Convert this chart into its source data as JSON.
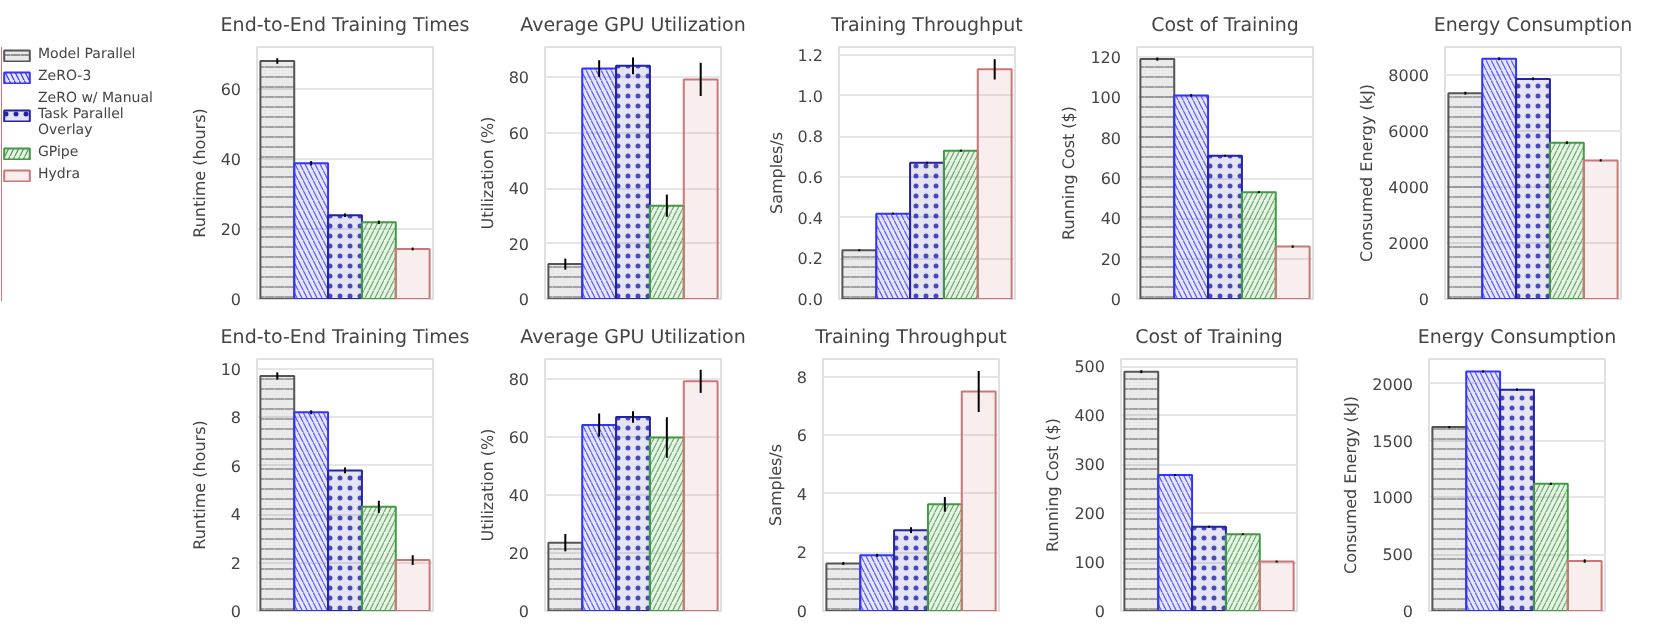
{
  "chart_data": [
    {
      "type": "bar",
      "title": "End-to-End Training Times",
      "ylabel": "Runtime (hours)",
      "categories": [
        null
      ],
      "legend": "left",
      "grid": "y",
      "ylim": [
        0,
        72
      ],
      "yticks": [
        0,
        20,
        40,
        60
      ],
      "series": [
        {
          "name": "Model Parallel",
          "color": "#555555",
          "values": [
            68
          ],
          "errors": [
            0.8
          ]
        },
        {
          "name": "ZeRO-3",
          "color": "#3333ff",
          "values": [
            38.8
          ],
          "errors": [
            0.6
          ]
        },
        {
          "name": "ZeRO w/ Manual Task Parallel Overlay",
          "color": "#2222aa",
          "values": [
            23.9
          ],
          "errors": [
            0.5
          ]
        },
        {
          "name": "GPipe",
          "color": "#449944",
          "values": [
            21.9
          ],
          "errors": [
            0.5
          ]
        },
        {
          "name": "Hydra",
          "color": "#cc7777",
          "values": [
            14.3
          ],
          "errors": [
            0.4
          ]
        }
      ]
    },
    {
      "type": "bar",
      "title": "Average GPU Utilization",
      "ylabel": "Utilization (%)",
      "categories": [
        null
      ],
      "grid": "y",
      "ylim": [
        0,
        91
      ],
      "yticks": [
        0,
        20,
        40,
        60,
        80
      ],
      "series": [
        {
          "color": "#555555",
          "values": [
            12.6
          ],
          "errors": [
            2
          ]
        },
        {
          "color": "#3333ff",
          "values": [
            83.2
          ],
          "errors": [
            3
          ]
        },
        {
          "color": "#2222aa",
          "values": [
            84.2
          ],
          "errors": [
            3
          ]
        },
        {
          "color": "#449944",
          "values": [
            33.7
          ],
          "errors": [
            4
          ]
        },
        {
          "color": "#cc7777",
          "values": [
            79.3
          ],
          "errors": [
            6
          ]
        }
      ]
    },
    {
      "type": "bar",
      "title": "Training Throughput",
      "ylabel": "Samples/s",
      "categories": [
        null
      ],
      "grid": "y",
      "ylim": [
        0,
        1.24
      ],
      "yticks": [
        {
          "value": 0,
          "label": "0.0"
        },
        0.2,
        0.4,
        0.6,
        0.8,
        {
          "value": 1,
          "label": "1.0"
        },
        1.2
      ],
      "series": [
        {
          "color": "#555555",
          "values": [
            0.24
          ],
          "errors": [
            0.005
          ]
        },
        {
          "color": "#3333ff",
          "values": [
            0.42
          ],
          "errors": [
            0.005
          ]
        },
        {
          "color": "#2222aa",
          "values": [
            0.67
          ],
          "errors": [
            0.005
          ]
        },
        {
          "color": "#449944",
          "values": [
            0.73
          ],
          "errors": [
            0.005
          ]
        },
        {
          "color": "#cc7777",
          "values": [
            1.13
          ],
          "errors": [
            0.05
          ]
        }
      ]
    },
    {
      "type": "bar",
      "title": "Cost of Training",
      "ylabel": "Running Cost ($)",
      "categories": [
        null
      ],
      "grid": "y",
      "ylim": [
        0,
        125
      ],
      "yticks": [
        0,
        20,
        40,
        60,
        80,
        100,
        120
      ],
      "series": [
        {
          "color": "#555555",
          "values": [
            119
          ],
          "errors": [
            0.8
          ]
        },
        {
          "color": "#3333ff",
          "values": [
            101
          ],
          "errors": [
            0.6
          ]
        },
        {
          "color": "#2222aa",
          "values": [
            71
          ],
          "errors": [
            0.5
          ]
        },
        {
          "color": "#449944",
          "values": [
            53
          ],
          "errors": [
            0.5
          ]
        },
        {
          "color": "#cc7777",
          "values": [
            26
          ],
          "errors": [
            0.6
          ]
        }
      ]
    },
    {
      "type": "bar",
      "title": "Energy Consumption",
      "ylabel": "Consumed Energy (kJ)",
      "categories": [
        null
      ],
      "grid": "y",
      "ylim": [
        0,
        9000
      ],
      "yticks": [
        0,
        2000,
        4000,
        6000,
        8000
      ],
      "series": [
        {
          "color": "#555555",
          "values": [
            7350
          ],
          "errors": [
            50
          ]
        },
        {
          "color": "#3333ff",
          "values": [
            8580
          ],
          "errors": [
            50
          ]
        },
        {
          "color": "#2222aa",
          "values": [
            7860
          ],
          "errors": [
            50
          ]
        },
        {
          "color": "#449944",
          "values": [
            5580
          ],
          "errors": [
            50
          ]
        },
        {
          "color": "#cc7777",
          "values": [
            4950
          ],
          "errors": [
            40
          ]
        }
      ]
    },
    {
      "type": "bar",
      "title": "End-to-End Training Times",
      "ylabel": "Runtime (hours)",
      "categories": [
        null
      ],
      "grid": "y",
      "ylim": [
        0,
        10.4
      ],
      "yticks": [
        0,
        2,
        4,
        6,
        8,
        10
      ],
      "series": [
        {
          "color": "#555555",
          "values": [
            9.7
          ],
          "errors": [
            0.15
          ]
        },
        {
          "color": "#3333ff",
          "values": [
            8.2
          ],
          "errors": [
            0.08
          ]
        },
        {
          "color": "#2222aa",
          "values": [
            5.8
          ],
          "errors": [
            0.12
          ]
        },
        {
          "color": "#449944",
          "values": [
            4.3
          ],
          "errors": [
            0.25
          ]
        },
        {
          "color": "#cc7777",
          "values": [
            2.1
          ],
          "errors": [
            0.2
          ]
        }
      ]
    },
    {
      "type": "bar",
      "title": "Average GPU Utilization",
      "ylabel": "Utilization (%)",
      "categories": [
        null
      ],
      "grid": "y",
      "ylim": [
        0,
        87
      ],
      "yticks": [
        0,
        20,
        40,
        60,
        80
      ],
      "series": [
        {
          "color": "#555555",
          "values": [
            23.6
          ],
          "errors": [
            3
          ]
        },
        {
          "color": "#3333ff",
          "values": [
            64.2
          ],
          "errors": [
            4
          ]
        },
        {
          "color": "#2222aa",
          "values": [
            67
          ],
          "errors": [
            2
          ]
        },
        {
          "color": "#449944",
          "values": [
            59.9
          ],
          "errors": [
            7
          ]
        },
        {
          "color": "#cc7777",
          "values": [
            79.3
          ],
          "errors": [
            4
          ]
        }
      ]
    },
    {
      "type": "bar",
      "title": "Training Throughput",
      "ylabel": "Samples/s",
      "categories": [
        null
      ],
      "grid": "y",
      "ylim": [
        0,
        8.6
      ],
      "yticks": [
        0,
        2,
        4,
        6,
        8
      ],
      "series": [
        {
          "color": "#555555",
          "values": [
            1.62
          ],
          "errors": [
            0.05
          ]
        },
        {
          "color": "#3333ff",
          "values": [
            1.9
          ],
          "errors": [
            0.05
          ]
        },
        {
          "color": "#2222aa",
          "values": [
            2.76
          ],
          "errors": [
            0.1
          ]
        },
        {
          "color": "#449944",
          "values": [
            3.64
          ],
          "errors": [
            0.25
          ]
        },
        {
          "color": "#cc7777",
          "values": [
            7.49
          ],
          "errors": [
            0.7
          ]
        }
      ]
    },
    {
      "type": "bar",
      "title": "Cost of Training",
      "ylabel": "Running Cost ($)",
      "categories": [
        null
      ],
      "grid": "y",
      "ylim": [
        0,
        515
      ],
      "yticks": [
        0,
        100,
        200,
        300,
        400,
        500
      ],
      "series": [
        {
          "color": "#555555",
          "values": [
            489
          ],
          "errors": [
            3
          ]
        },
        {
          "color": "#3333ff",
          "values": [
            278
          ],
          "errors": [
            2
          ]
        },
        {
          "color": "#2222aa",
          "values": [
            172
          ],
          "errors": [
            2
          ]
        },
        {
          "color": "#449944",
          "values": [
            157
          ],
          "errors": [
            2
          ]
        },
        {
          "color": "#cc7777",
          "values": [
            101
          ],
          "errors": [
            2
          ]
        }
      ]
    },
    {
      "type": "bar",
      "title": "Energy Consumption",
      "ylabel": "Consumed Energy (kJ)",
      "categories": [
        null
      ],
      "grid": "y",
      "ylim": [
        0,
        2220
      ],
      "yticks": [
        0,
        500,
        1000,
        1500,
        2000
      ],
      "series": [
        {
          "color": "#555555",
          "values": [
            1620
          ],
          "errors": [
            10
          ]
        },
        {
          "color": "#3333ff",
          "values": [
            2110
          ],
          "errors": [
            10
          ]
        },
        {
          "color": "#2222aa",
          "values": [
            1950
          ],
          "errors": [
            10
          ]
        },
        {
          "color": "#449944",
          "values": [
            1120
          ],
          "errors": [
            10
          ]
        },
        {
          "color": "#cc7777",
          "values": [
            440
          ],
          "errors": [
            15
          ]
        }
      ]
    }
  ]
}
